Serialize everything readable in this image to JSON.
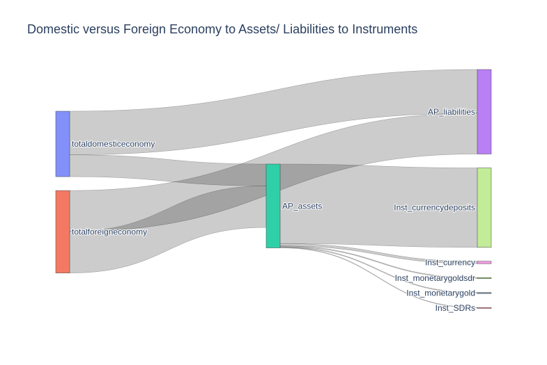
{
  "chart_data": {
    "type": "sankey",
    "title": "Domestic versus Foreign Economy to Assets/ Liabilities to Instruments",
    "nodes": [
      {
        "id": "totaldomesticeconomy",
        "label": "totaldomesticeconomy",
        "color": "#8390fa",
        "column": 0
      },
      {
        "id": "totalforeigneconomy",
        "label": "totalforeigneconomy",
        "color": "#f47963",
        "column": 0
      },
      {
        "id": "AP_assets",
        "label": "AP_assets",
        "color": "#2fd0a7",
        "column": 1
      },
      {
        "id": "AP_liabilities",
        "label": "AP_liabilities",
        "color": "#b97ff5",
        "column": 2
      },
      {
        "id": "Inst_currencydeposits",
        "label": "Inst_currencydeposits",
        "color": "#c2ec97",
        "column": 2
      },
      {
        "id": "Inst_currency",
        "label": "Inst_currency",
        "color": "#f59ae4",
        "column": 2
      },
      {
        "id": "Inst_monetarygoldsdr",
        "label": "Inst_monetarygoldsdr",
        "color": "#9ed47c",
        "column": 2
      },
      {
        "id": "Inst_monetarygold",
        "label": "Inst_monetarygold",
        "color": "#6f8fa0",
        "column": 2
      },
      {
        "id": "Inst_SDRs",
        "label": "Inst_SDRs",
        "color": "#f5a0b0",
        "column": 2
      }
    ],
    "links": [
      {
        "source": "totaldomesticeconomy",
        "target": "AP_liabilities",
        "value": 64
      },
      {
        "source": "totaldomesticeconomy",
        "target": "AP_assets",
        "value": 32
      },
      {
        "source": "totalforeigneconomy",
        "target": "AP_liabilities",
        "value": 60
      },
      {
        "source": "totalforeigneconomy",
        "target": "AP_assets",
        "value": 61
      },
      {
        "source": "AP_assets",
        "target": "Inst_currencydeposits",
        "value": 116.6
      },
      {
        "source": "AP_assets",
        "target": "Inst_currency",
        "value": 3.5
      },
      {
        "source": "AP_assets",
        "target": "Inst_monetarygoldsdr",
        "value": 1.2
      },
      {
        "source": "AP_assets",
        "target": "Inst_monetarygold",
        "value": 1.0
      },
      {
        "source": "AP_assets",
        "target": "Inst_SDRs",
        "value": 0.7
      }
    ]
  }
}
